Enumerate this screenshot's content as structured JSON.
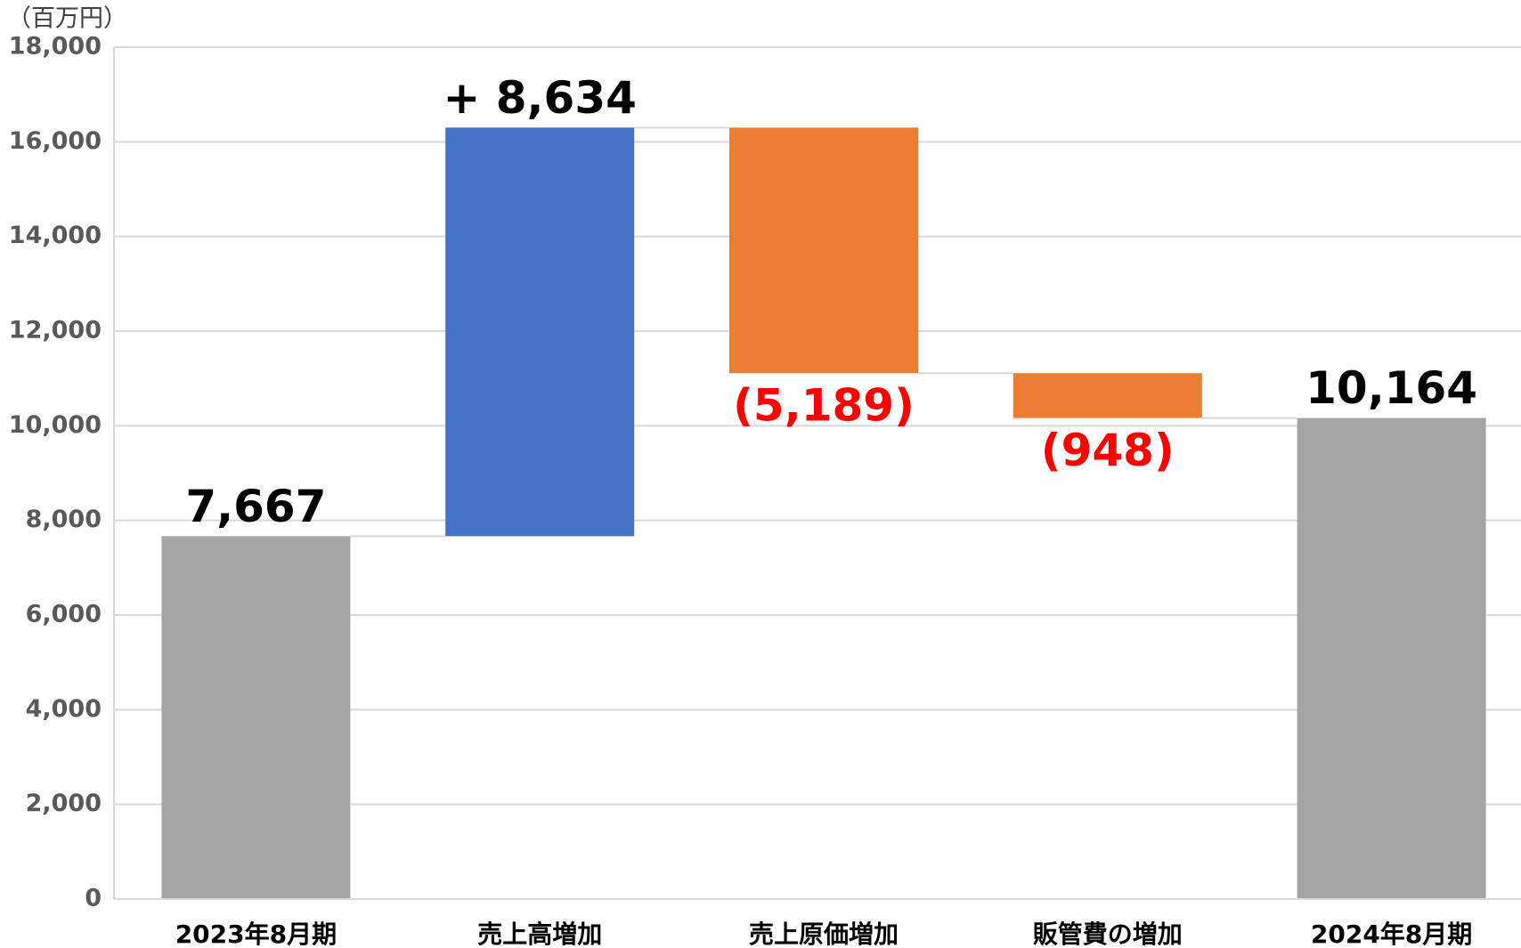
{
  "chart_data": {
    "type": "waterfall",
    "y_unit": "（百万円）",
    "categories": [
      "2023年8月期",
      "売上高増加",
      "売上原価増加",
      "販管費の増加",
      "2024年8月期"
    ],
    "values": [
      7667,
      8634,
      -5189,
      -948,
      10164
    ],
    "value_labels": [
      "7,667",
      "+ 8,634",
      "(5,189)",
      "(948)",
      "10,164"
    ],
    "measure": [
      "total",
      "relative",
      "relative",
      "relative",
      "total"
    ],
    "colors": [
      "#a5a5a5",
      "#4472c4",
      "#ed7d31",
      "#ed7d31",
      "#a5a5a5"
    ],
    "label_colors": [
      "#000000",
      "#000000",
      "#ff0000",
      "#ff0000",
      "#000000"
    ],
    "ylim": [
      0,
      18000
    ],
    "yticks": [
      0,
      {
        "value": 2000,
        "label": "2,000"
      },
      {
        "value": 4000,
        "label": "4,000"
      },
      {
        "value": 6000,
        "label": "6,000"
      },
      {
        "value": 8000,
        "label": "8,000"
      },
      {
        "value": 10000,
        "label": "10,000"
      },
      {
        "value": 12000,
        "label": "12,000"
      },
      {
        "value": 14000,
        "label": "14,000"
      },
      {
        "value": 16000,
        "label": "16,000"
      },
      {
        "value": 18000,
        "label": "18,000"
      }
    ],
    "grid": true
  }
}
